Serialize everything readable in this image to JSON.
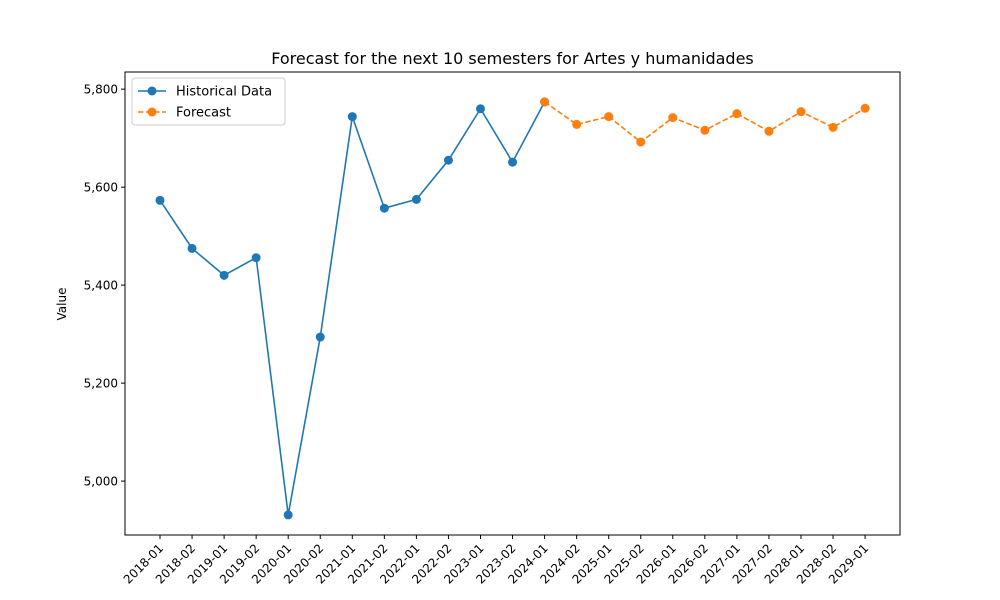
{
  "chart_data": {
    "type": "line",
    "title": "Forecast for the next 10 semesters for Artes y humanidades",
    "xlabel": "",
    "ylabel": "Value",
    "ylim": [
      4890,
      5835
    ],
    "yticks": [
      5000,
      5200,
      5400,
      5600,
      5800
    ],
    "ytick_labels": [
      "5,000",
      "5,200",
      "5,400",
      "5,600",
      "5,800"
    ],
    "categories": [
      "2018-01",
      "2018-02",
      "2019-01",
      "2019-02",
      "2020-01",
      "2020-02",
      "2021-01",
      "2021-02",
      "2022-01",
      "2022-02",
      "2023-01",
      "2023-02",
      "2024-01",
      "2024-02",
      "2025-01",
      "2025-02",
      "2026-01",
      "2026-02",
      "2027-01",
      "2027-02",
      "2028-01",
      "2028-02",
      "2029-01"
    ],
    "grid": false,
    "legend_position": "top-left",
    "series": [
      {
        "name": "Historical Data",
        "color": "#1f77b4",
        "style": "solid",
        "x": [
          "2018-01",
          "2018-02",
          "2019-01",
          "2019-02",
          "2020-01",
          "2020-02",
          "2021-01",
          "2021-02",
          "2022-01",
          "2022-02",
          "2023-01",
          "2023-02",
          "2024-01"
        ],
        "values": [
          5573,
          5475,
          5420,
          5456,
          4931,
          5294,
          5744,
          5557,
          5575,
          5655,
          5760,
          5651,
          5774
        ]
      },
      {
        "name": "Forecast",
        "color": "#ff7f0e",
        "style": "dashed",
        "x": [
          "2024-01",
          "2024-02",
          "2025-01",
          "2025-02",
          "2026-01",
          "2026-02",
          "2027-01",
          "2027-02",
          "2028-01",
          "2028-02",
          "2029-01"
        ],
        "values": [
          5774,
          5728,
          5744,
          5692,
          5742,
          5716,
          5750,
          5714,
          5754,
          5722,
          5761
        ]
      }
    ]
  }
}
